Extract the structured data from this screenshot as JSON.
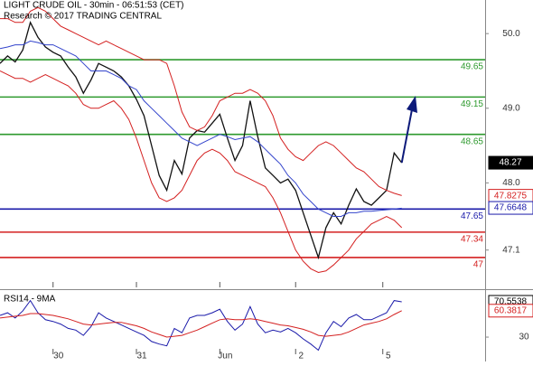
{
  "chart_data": {
    "type": "line",
    "title": "LIGHT CRUDE OIL - 30min - 06:51:53 (CET)",
    "subtitle": "Research © 2017 TRADING CENTRAL",
    "xlim": [
      0,
      64
    ],
    "xticks": [
      {
        "value": 7,
        "label": "30"
      },
      {
        "value": 18,
        "label": "31"
      },
      {
        "value": 29,
        "label": "Jun"
      },
      {
        "value": 39,
        "label": "2"
      },
      {
        "value": 50.5,
        "label": "5"
      }
    ],
    "ylim": [
      46.6,
      50.45
    ],
    "yticks": [
      {
        "value": 50,
        "label": "50.0"
      },
      {
        "value": 49,
        "label": "49.0"
      },
      {
        "value": 48,
        "label": "48.0"
      },
      47.1
    ],
    "series": [
      {
        "name": "Price",
        "color": "#111111",
        "values": [
          49.6,
          49.7,
          49.62,
          49.78,
          50.15,
          49.95,
          49.82,
          49.75,
          49.7,
          49.55,
          49.42,
          49.2,
          49.38,
          49.6,
          49.55,
          49.5,
          49.42,
          49.3,
          49.12,
          48.9,
          48.5,
          48.1,
          47.9,
          48.3,
          48.12,
          48.6,
          48.7,
          48.68,
          48.8,
          48.92,
          48.6,
          48.3,
          48.5,
          49.1,
          48.62,
          48.2,
          48.1,
          48.0,
          48.05,
          47.9,
          47.6,
          47.3,
          47.0,
          47.4,
          47.6,
          47.45,
          47.7,
          47.92,
          47.75,
          47.7,
          47.8,
          47.9,
          48.4,
          48.27
        ]
      },
      {
        "name": "Upper band",
        "color": "#d42020",
        "values": [
          50.2,
          50.2,
          50.15,
          50.15,
          50.3,
          50.35,
          50.3,
          50.2,
          50.1,
          50.05,
          50.0,
          49.95,
          49.9,
          49.85,
          49.9,
          49.85,
          49.8,
          49.75,
          49.7,
          49.65,
          49.65,
          49.65,
          49.6,
          49.3,
          48.95,
          48.75,
          48.7,
          48.75,
          48.9,
          49.1,
          49.15,
          49.2,
          49.2,
          49.25,
          49.2,
          49.1,
          48.9,
          48.6,
          48.45,
          48.35,
          48.3,
          48.4,
          48.5,
          48.55,
          48.5,
          48.4,
          48.3,
          48.2,
          48.15,
          48.05,
          47.95,
          47.9,
          47.86,
          47.83
        ]
      },
      {
        "name": "Lower band",
        "color": "#d42020",
        "values": [
          49.5,
          49.45,
          49.4,
          49.4,
          49.35,
          49.4,
          49.45,
          49.4,
          49.35,
          49.3,
          49.2,
          49.05,
          49.0,
          49.0,
          49.05,
          49.1,
          49.0,
          48.85,
          48.6,
          48.3,
          48.0,
          47.8,
          47.75,
          47.8,
          47.9,
          48.1,
          48.3,
          48.4,
          48.45,
          48.4,
          48.3,
          48.15,
          48.1,
          48.05,
          48.0,
          47.95,
          47.8,
          47.6,
          47.35,
          47.1,
          46.95,
          46.85,
          46.8,
          46.82,
          46.9,
          47.0,
          47.1,
          47.25,
          47.35,
          47.45,
          47.5,
          47.55,
          47.5,
          47.4
        ]
      },
      {
        "name": "Moving average",
        "color": "#3344cc",
        "values": [
          49.8,
          49.82,
          49.85,
          49.85,
          49.9,
          49.88,
          49.85,
          49.85,
          49.8,
          49.75,
          49.7,
          49.6,
          49.5,
          49.5,
          49.5,
          49.45,
          49.4,
          49.3,
          49.25,
          49.1,
          49.0,
          48.9,
          48.8,
          48.7,
          48.6,
          48.55,
          48.5,
          48.55,
          48.6,
          48.65,
          48.62,
          48.58,
          48.6,
          48.62,
          48.55,
          48.45,
          48.35,
          48.25,
          48.1,
          48.0,
          47.85,
          47.75,
          47.65,
          47.6,
          47.55,
          47.55,
          47.6,
          47.6,
          47.62,
          47.62,
          47.63,
          47.64,
          47.65,
          47.66
        ]
      }
    ],
    "levels": [
      {
        "value": 49.65,
        "color": "#2e9a2e"
      },
      {
        "value": 49.15,
        "color": "#2e9a2e"
      },
      {
        "value": 48.65,
        "color": "#2e9a2e"
      },
      {
        "value": 47.65,
        "color": "#1a1aaa"
      },
      {
        "value": 47.34,
        "color": "#d42020"
      },
      {
        "value": 47,
        "color": "#d42020"
      }
    ],
    "price_tags": [
      {
        "value": 48.27,
        "color": "#000000",
        "filled": true
      },
      {
        "value": 47.8275,
        "color": "#d42020",
        "filled": false
      },
      {
        "value": 47.6648,
        "color": "#1a1aaa",
        "filled": false
      }
    ],
    "rsi": {
      "title": "RSI14 - 9MA",
      "ylim": [
        2,
        83
      ],
      "yticks": [
        30
      ],
      "series": [
        {
          "name": "RSI14",
          "color": "#1a1aaa",
          "values": [
            55,
            58,
            52,
            60,
            72,
            58,
            50,
            48,
            45,
            40,
            38,
            32,
            42,
            58,
            52,
            48,
            44,
            40,
            36,
            32,
            25,
            22,
            20,
            40,
            35,
            52,
            55,
            55,
            58,
            62,
            48,
            38,
            45,
            65,
            45,
            35,
            38,
            36,
            40,
            35,
            28,
            22,
            15,
            35,
            48,
            42,
            52,
            56,
            50,
            50,
            54,
            58,
            72,
            70.5538
          ]
        },
        {
          "name": "9MA",
          "color": "#d42020",
          "values": [
            52,
            53,
            54,
            55,
            57,
            57,
            56,
            55,
            53,
            51,
            48,
            45,
            44,
            45,
            46,
            47,
            47,
            45,
            43,
            40,
            36,
            33,
            30,
            31,
            32,
            35,
            38,
            42,
            46,
            50,
            51,
            50,
            50,
            51,
            50,
            48,
            46,
            44,
            43,
            41,
            39,
            36,
            32,
            31,
            32,
            33,
            36,
            40,
            44,
            46,
            48,
            51,
            56,
            60.3817
          ]
        }
      ],
      "tags": [
        {
          "value": 70.5538,
          "color": "#000000"
        },
        {
          "value": 60.3817,
          "color": "#d42020"
        }
      ]
    }
  }
}
